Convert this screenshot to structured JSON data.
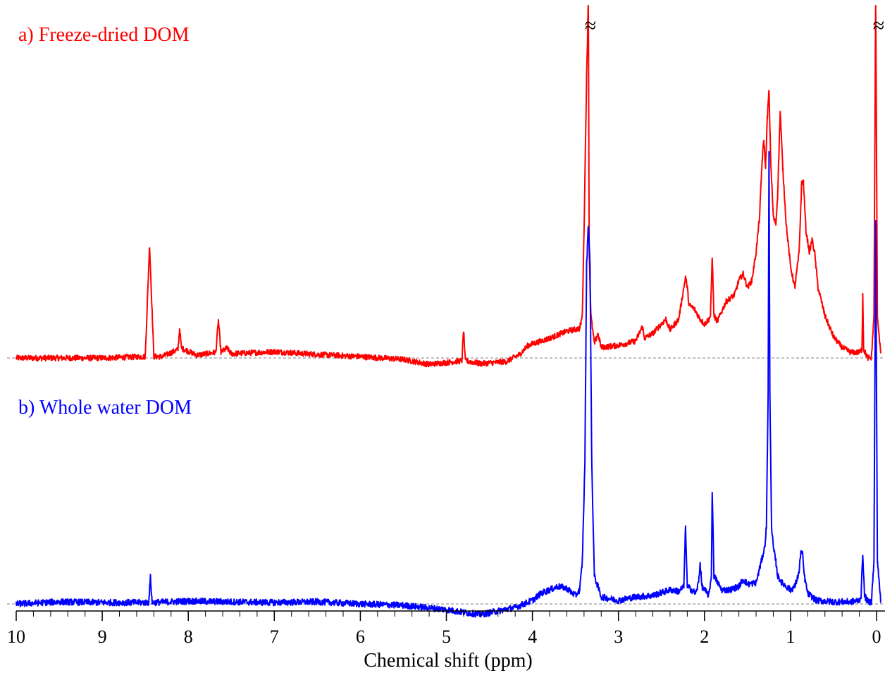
{
  "colors": {
    "series_a": "#ff0000",
    "series_b": "#0000ff",
    "axis": "#000000",
    "baseline": "#808080"
  },
  "chart_data": {
    "type": "line",
    "xlabel": "Chemical shift (ppm)",
    "ylabel": "",
    "title": "",
    "xlim": [
      10,
      0
    ],
    "x_reversed": true,
    "x_ticks": [
      "10",
      "9",
      "8",
      "7",
      "6",
      "5",
      "4",
      "3",
      "2",
      "1",
      "0"
    ],
    "y_axis_shown": false,
    "grid": false,
    "axis_break_marker": "≈",
    "axis_break_positions_ppm": [
      3.35,
      0.0
    ],
    "series": [
      {
        "name": "a) Freeze-dried DOM",
        "color": "#ff0000",
        "baseline": 0,
        "points": [
          [
            10.0,
            0
          ],
          [
            9.0,
            0
          ],
          [
            8.5,
            2
          ],
          [
            8.45,
            160
          ],
          [
            8.4,
            2
          ],
          [
            8.3,
            2
          ],
          [
            8.12,
            12
          ],
          [
            8.1,
            42
          ],
          [
            8.08,
            14
          ],
          [
            7.9,
            4
          ],
          [
            7.68,
            8
          ],
          [
            7.65,
            53
          ],
          [
            7.62,
            8
          ],
          [
            7.55,
            14
          ],
          [
            7.5,
            6
          ],
          [
            7.0,
            9
          ],
          [
            6.5,
            5
          ],
          [
            6.0,
            2
          ],
          [
            5.5,
            -2
          ],
          [
            5.2,
            -9
          ],
          [
            4.82,
            -4
          ],
          [
            4.8,
            40
          ],
          [
            4.78,
            -4
          ],
          [
            4.6,
            -8
          ],
          [
            4.3,
            -5
          ],
          [
            4.15,
            5
          ],
          [
            4.05,
            18
          ],
          [
            3.8,
            28
          ],
          [
            3.6,
            38
          ],
          [
            3.45,
            42
          ],
          [
            3.42,
            60
          ],
          [
            3.4,
            180
          ],
          [
            3.37,
            400
          ],
          [
            3.36,
            450
          ],
          [
            3.35,
            520
          ],
          [
            3.34,
            150
          ],
          [
            3.32,
            60
          ],
          [
            3.28,
            20
          ],
          [
            3.24,
            35
          ],
          [
            3.2,
            15
          ],
          [
            3.0,
            18
          ],
          [
            2.8,
            24
          ],
          [
            2.72,
            45
          ],
          [
            2.7,
            28
          ],
          [
            2.6,
            35
          ],
          [
            2.45,
            55
          ],
          [
            2.4,
            40
          ],
          [
            2.3,
            55
          ],
          [
            2.22,
            115
          ],
          [
            2.2,
            100
          ],
          [
            2.18,
            75
          ],
          [
            2.12,
            70
          ],
          [
            2.05,
            55
          ],
          [
            2.0,
            48
          ],
          [
            1.95,
            55
          ],
          [
            1.93,
            60
          ],
          [
            1.91,
            145
          ],
          [
            1.89,
            60
          ],
          [
            1.85,
            52
          ],
          [
            1.75,
            80
          ],
          [
            1.65,
            90
          ],
          [
            1.6,
            110
          ],
          [
            1.55,
            120
          ],
          [
            1.5,
            100
          ],
          [
            1.45,
            110
          ],
          [
            1.4,
            150
          ],
          [
            1.36,
            200
          ],
          [
            1.33,
            280
          ],
          [
            1.31,
            310
          ],
          [
            1.29,
            270
          ],
          [
            1.27,
            340
          ],
          [
            1.25,
            380
          ],
          [
            1.23,
            280
          ],
          [
            1.2,
            200
          ],
          [
            1.17,
            190
          ],
          [
            1.15,
            230
          ],
          [
            1.12,
            350
          ],
          [
            1.09,
            270
          ],
          [
            1.05,
            190
          ],
          [
            1.0,
            130
          ],
          [
            0.95,
            100
          ],
          [
            0.9,
            150
          ],
          [
            0.87,
            250
          ],
          [
            0.85,
            250
          ],
          [
            0.82,
            180
          ],
          [
            0.78,
            150
          ],
          [
            0.75,
            168
          ],
          [
            0.72,
            150
          ],
          [
            0.68,
            100
          ],
          [
            0.6,
            60
          ],
          [
            0.5,
            30
          ],
          [
            0.4,
            15
          ],
          [
            0.3,
            8
          ],
          [
            0.2,
            8
          ],
          [
            0.17,
            12
          ],
          [
            0.16,
            90
          ],
          [
            0.15,
            12
          ],
          [
            0.1,
            0
          ],
          [
            0.06,
            0
          ],
          [
            0.03,
            60
          ],
          [
            0.01,
            520
          ],
          [
            -0.01,
            60
          ],
          [
            -0.05,
            5
          ]
        ]
      },
      {
        "name": "b) Whole water DOM",
        "color": "#0000ff",
        "baseline": 0,
        "points": [
          [
            10.0,
            0
          ],
          [
            9.5,
            3
          ],
          [
            9.0,
            2
          ],
          [
            8.5,
            2
          ],
          [
            8.46,
            2
          ],
          [
            8.44,
            38
          ],
          [
            8.42,
            2
          ],
          [
            8.0,
            4
          ],
          [
            7.5,
            3
          ],
          [
            7.0,
            2
          ],
          [
            6.5,
            3
          ],
          [
            6.0,
            0
          ],
          [
            5.5,
            -2
          ],
          [
            5.0,
            -8
          ],
          [
            4.8,
            -12
          ],
          [
            4.6,
            -15
          ],
          [
            4.4,
            -10
          ],
          [
            4.2,
            -5
          ],
          [
            4.1,
            0
          ],
          [
            4.0,
            5
          ],
          [
            3.9,
            15
          ],
          [
            3.7,
            25
          ],
          [
            3.6,
            22
          ],
          [
            3.5,
            12
          ],
          [
            3.45,
            20
          ],
          [
            3.42,
            60
          ],
          [
            3.39,
            200
          ],
          [
            3.37,
            480
          ],
          [
            3.35,
            540
          ],
          [
            3.33,
            480
          ],
          [
            3.31,
            200
          ],
          [
            3.28,
            40
          ],
          [
            3.2,
            10
          ],
          [
            3.0,
            5
          ],
          [
            2.8,
            10
          ],
          [
            2.6,
            12
          ],
          [
            2.4,
            20
          ],
          [
            2.3,
            18
          ],
          [
            2.24,
            25
          ],
          [
            2.22,
            110
          ],
          [
            2.2,
            25
          ],
          [
            2.1,
            15
          ],
          [
            2.07,
            30
          ],
          [
            2.05,
            58
          ],
          [
            2.03,
            25
          ],
          [
            1.95,
            12
          ],
          [
            1.92,
            40
          ],
          [
            1.91,
            162
          ],
          [
            1.89,
            40
          ],
          [
            1.8,
            20
          ],
          [
            1.7,
            20
          ],
          [
            1.6,
            25
          ],
          [
            1.55,
            35
          ],
          [
            1.5,
            28
          ],
          [
            1.4,
            30
          ],
          [
            1.35,
            55
          ],
          [
            1.3,
            80
          ],
          [
            1.28,
            110
          ],
          [
            1.26,
            300
          ],
          [
            1.25,
            640
          ],
          [
            1.24,
            300
          ],
          [
            1.22,
            110
          ],
          [
            1.2,
            80
          ],
          [
            1.17,
            60
          ],
          [
            1.15,
            40
          ],
          [
            1.1,
            30
          ],
          [
            1.0,
            20
          ],
          [
            0.95,
            25
          ],
          [
            0.9,
            45
          ],
          [
            0.88,
            75
          ],
          [
            0.86,
            70
          ],
          [
            0.84,
            40
          ],
          [
            0.8,
            15
          ],
          [
            0.7,
            5
          ],
          [
            0.5,
            3
          ],
          [
            0.3,
            3
          ],
          [
            0.2,
            5
          ],
          [
            0.18,
            12
          ],
          [
            0.16,
            72
          ],
          [
            0.14,
            12
          ],
          [
            0.1,
            3
          ],
          [
            0.06,
            3
          ],
          [
            0.03,
            60
          ],
          [
            0.01,
            540
          ],
          [
            -0.01,
            60
          ],
          [
            -0.05,
            3
          ]
        ]
      }
    ]
  }
}
